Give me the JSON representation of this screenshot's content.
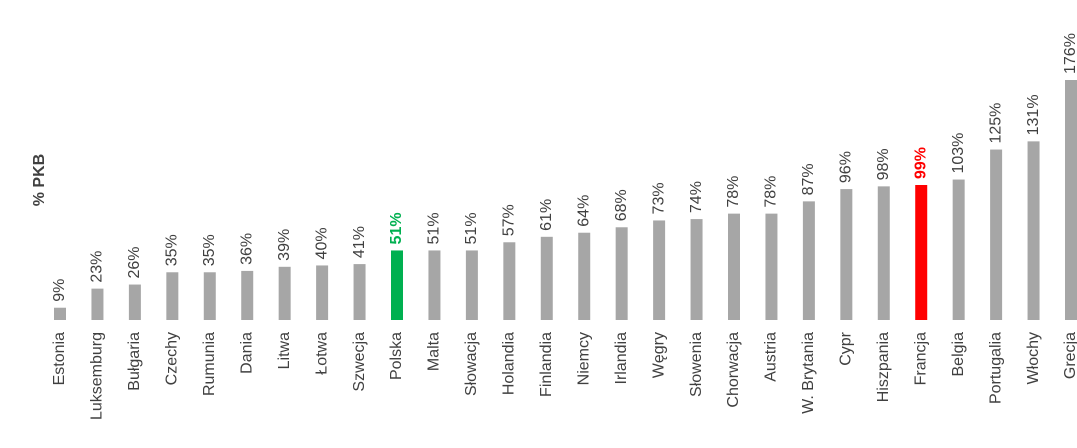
{
  "chart_data": {
    "type": "bar",
    "y_label": "% PKB",
    "categories": [
      "Estonia",
      "Luksemburg",
      "Bułgaria",
      "Czechy",
      "Rumunia",
      "Dania",
      "Litwa",
      "Łotwa",
      "Szwecja",
      "Polska",
      "Malta",
      "Słowacja",
      "Holandia",
      "Finlandia",
      "Niemcy",
      "Irlandia",
      "Węgry",
      "Słowenia",
      "Chorwacja",
      "Austria",
      "W. Brytania",
      "Cypr",
      "Hiszpania",
      "Francja",
      "Belgia",
      "Portugalia",
      "Włochy",
      "Grecja"
    ],
    "values": [
      9,
      23,
      26,
      35,
      35,
      36,
      39,
      40,
      41,
      51,
      51,
      51,
      57,
      61,
      64,
      68,
      73,
      74,
      78,
      78,
      87,
      96,
      98,
      99,
      103,
      125,
      131,
      176
    ],
    "value_labels": [
      "9%",
      "23%",
      "26%",
      "35%",
      "35%",
      "36%",
      "39%",
      "40%",
      "41%",
      "51%",
      "51%",
      "51%",
      "57%",
      "61%",
      "64%",
      "68%",
      "73%",
      "74%",
      "78%",
      "78%",
      "87%",
      "96%",
      "98%",
      "99%",
      "103%",
      "125%",
      "131%",
      "176%"
    ],
    "color": "#a6a6a6",
    "colors": [
      "#a6a6a6",
      "#a6a6a6",
      "#a6a6a6",
      "#a6a6a6",
      "#a6a6a6",
      "#a6a6a6",
      "#a6a6a6",
      "#a6a6a6",
      "#a6a6a6",
      "#00b050",
      "#a6a6a6",
      "#a6a6a6",
      "#a6a6a6",
      "#a6a6a6",
      "#a6a6a6",
      "#a6a6a6",
      "#a6a6a6",
      "#a6a6a6",
      "#a6a6a6",
      "#a6a6a6",
      "#a6a6a6",
      "#a6a6a6",
      "#a6a6a6",
      "#ff0000",
      "#a6a6a6",
      "#a6a6a6",
      "#a6a6a6",
      "#a6a6a6"
    ]
  }
}
